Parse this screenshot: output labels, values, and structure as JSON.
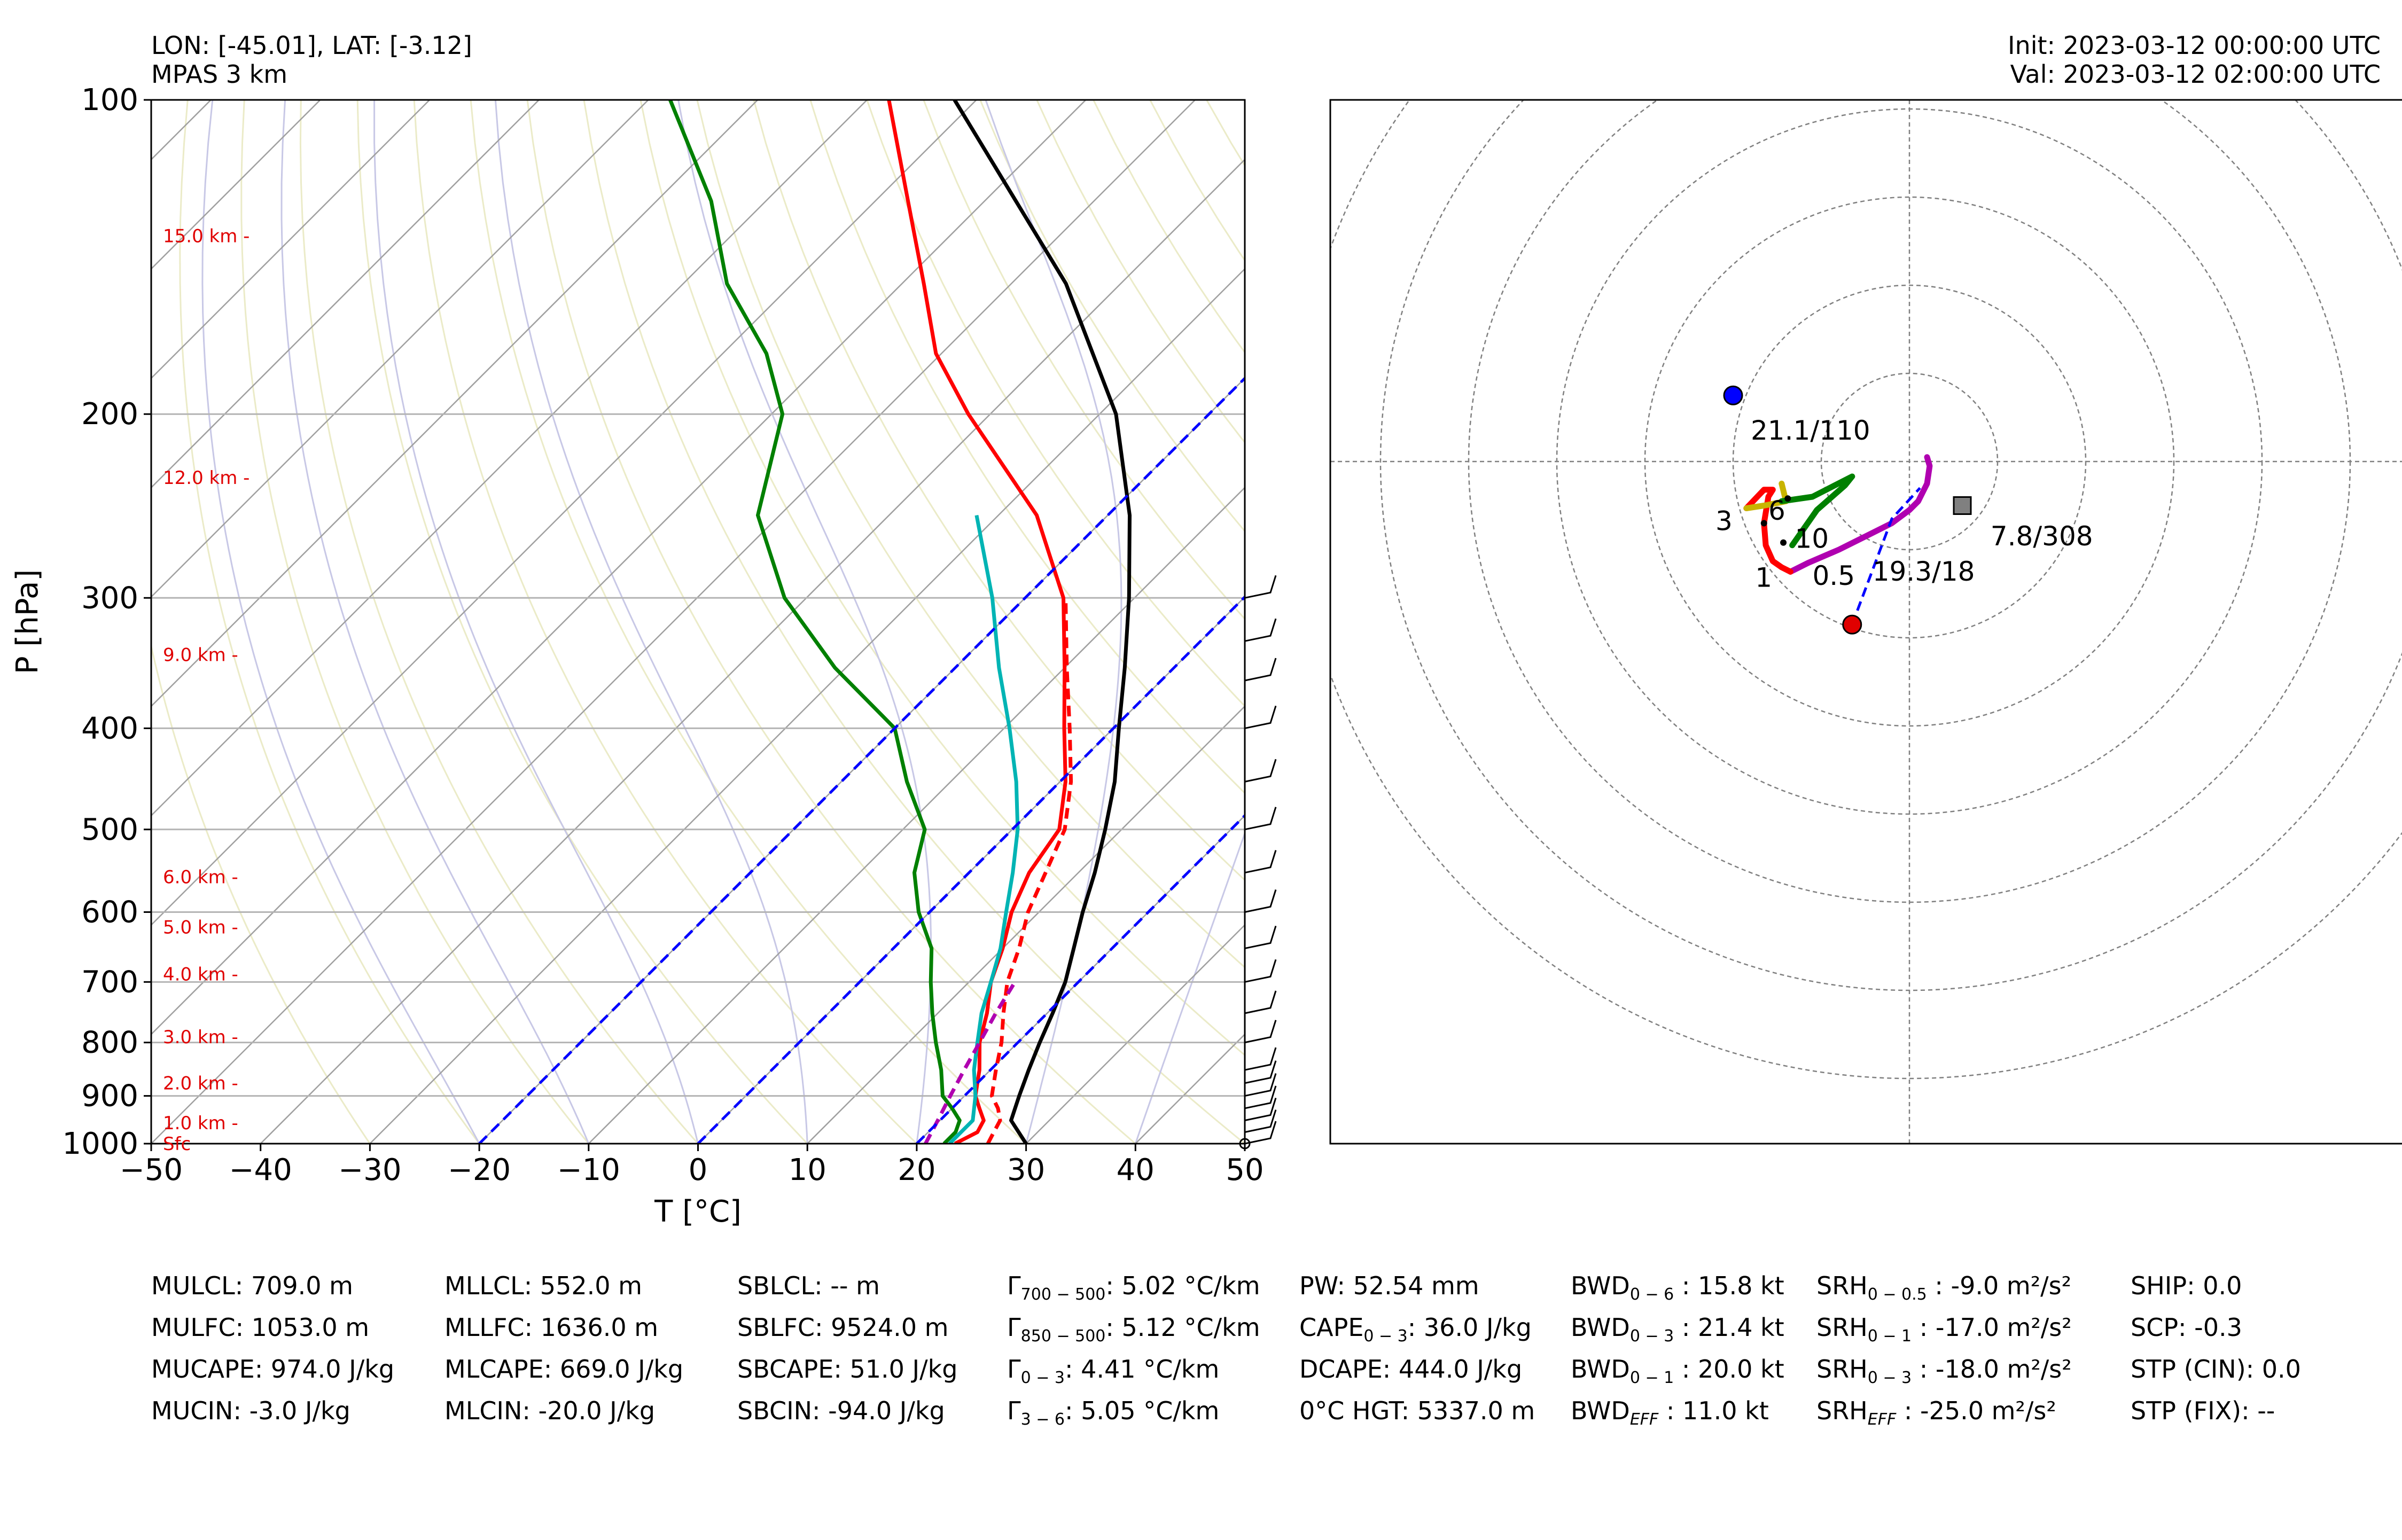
{
  "header": {
    "location": "LON: [-45.01], LAT: [-3.12]",
    "model": "MPAS 3 km",
    "init": "Init: 2023-03-12 00:00:00 UTC",
    "valid": "Val: 2023-03-12 02:00:00 UTC"
  },
  "chart_data": [
    {
      "type": "line",
      "subtype": "skew-T log-P",
      "xlabel": "T [°C]",
      "ylabel": "P [hPa]",
      "xlim": [
        -50,
        50
      ],
      "ylim": [
        1000,
        100
      ],
      "y_scale": "log",
      "x_ticks": [
        "−50",
        "−40",
        "−30",
        "−20",
        "−10",
        "0",
        "10",
        "20",
        "30",
        "40",
        "50"
      ],
      "y_ticks": [
        "100",
        "200",
        "300",
        "400",
        "500",
        "600",
        "700",
        "800",
        "900",
        "1000"
      ],
      "height_labels": [
        "15.0 km -",
        "12.0 km -",
        "9.0 km -",
        "6.0 km -",
        "5.0 km -",
        "4.0 km -",
        "3.0 km -",
        "2.0 km -",
        "1.0 km -",
        "Sfc"
      ],
      "height_label_pressures": [
        135,
        230,
        340,
        555,
        620,
        688,
        790,
        875,
        955,
        1000
      ],
      "series": [
        {
          "color": "#ff0000",
          "style": "solid",
          "p": [
            1000,
            975,
            950,
            925,
            900,
            850,
            800,
            750,
            700,
            650,
            600,
            550,
            500,
            450,
            400,
            350,
            300,
            250,
            200,
            175,
            150,
            125,
            100
          ],
          "t": [
            23.5,
            24.5,
            24.0,
            22.5,
            21.0,
            19.0,
            16.5,
            14.5,
            12.0,
            10.0,
            7.5,
            5.5,
            4.3,
            0.5,
            -4.5,
            -10.0,
            -16.5,
            -26.5,
            -42.0,
            -50.5,
            -58.0,
            -67.0,
            -78.0
          ]
        },
        {
          "color": "#ff0000",
          "style": "dashed",
          "p": [
            1000,
            975,
            950,
            925,
            900,
            850,
            800,
            750,
            700,
            650,
            600,
            550,
            500,
            450,
            400,
            350,
            300
          ],
          "t": [
            26.5,
            26.0,
            25.5,
            24.2,
            22.5,
            20.5,
            18.5,
            16.0,
            13.5,
            11.5,
            9.0,
            7.0,
            4.8,
            1.0,
            -4.0,
            -9.8,
            -16.3
          ]
        },
        {
          "color": "#008000",
          "style": "solid",
          "p": [
            1000,
            975,
            950,
            925,
            900,
            850,
            800,
            750,
            700,
            650,
            600,
            550,
            500,
            450,
            400,
            350,
            300,
            250,
            200,
            175,
            150,
            125,
            100
          ],
          "t": [
            22.5,
            22.5,
            21.8,
            20.0,
            18.0,
            15.5,
            12.5,
            9.5,
            6.5,
            3.5,
            -1.0,
            -5.0,
            -8.0,
            -14.0,
            -20.0,
            -31.0,
            -42.0,
            -52.0,
            -59.0,
            -66.0,
            -76.0,
            -85.0,
            -98.0
          ]
        },
        {
          "color": "#00b4b4",
          "style": "solid",
          "p": [
            1000,
            950,
            900,
            850,
            800,
            750,
            700,
            650,
            600,
            550,
            500,
            450,
            400,
            350,
            300,
            250
          ],
          "t": [
            23.0,
            23.0,
            21.0,
            18.5,
            16.3,
            14.0,
            12.0,
            9.8,
            7.0,
            4.0,
            0.5,
            -4.0,
            -9.5,
            -16.0,
            -23.0,
            -32.0
          ]
        },
        {
          "color": "#b000b0",
          "style": "dashed",
          "p": [
            1000,
            950,
            900,
            850,
            800,
            750,
            700
          ],
          "t": [
            20.8,
            19.8,
            18.7,
            17.6,
            16.5,
            15.3,
            14.2
          ]
        },
        {
          "color": "#000000",
          "style": "solid",
          "p": [
            1000,
            950,
            900,
            850,
            800,
            750,
            700,
            650,
            600,
            550,
            500,
            450,
            400,
            350,
            300,
            250,
            200,
            150,
            100
          ],
          "t": [
            30.0,
            26.5,
            25.0,
            23.5,
            22.0,
            20.5,
            18.8,
            16.5,
            14.0,
            11.5,
            8.5,
            5.0,
            0.5,
            -4.5,
            -10.5,
            -18.0,
            -28.5,
            -45.0,
            -72.0
          ]
        },
        {
          "color": "#0000ff",
          "style": "dashed",
          "note": "isotherm",
          "t_const": -20
        },
        {
          "color": "#0000ff",
          "style": "dashed",
          "note": "isotherm",
          "t_const": 0
        },
        {
          "color": "#0000ff",
          "style": "dashed",
          "note": "isotherm",
          "t_const": 20
        }
      ]
    },
    {
      "type": "scatter",
      "subtype": "hodograph",
      "grid": "concentric circles",
      "range_kt": [
        -50,
        50
      ],
      "ring_spacing_kt": 10,
      "hodo_line": [
        {
          "color": "#b000b0",
          "u": [
            2.0,
            2.3,
            2.0,
            1.0,
            0.0,
            -2.0,
            -5.0,
            -8.0,
            -11.5,
            -13.5
          ],
          "v": [
            0.5,
            -0.5,
            -2.5,
            -4.5,
            -5.5,
            -7.0,
            -8.5,
            -10.0,
            -11.5,
            -12.5
          ]
        },
        {
          "color": "#ff0000",
          "u": [
            -13.5,
            -14.5,
            -15.5,
            -16.3,
            -16.5,
            -16.0,
            -15.5,
            -16.5,
            -18.5
          ],
          "v": [
            -12.5,
            -12.0,
            -11.3,
            -9.5,
            -7.0,
            -4.0,
            -3.2,
            -3.2,
            -5.3
          ]
        },
        {
          "color": "#c8b400",
          "u": [
            -18.5,
            -16.5,
            -14.0,
            -14.5
          ],
          "v": [
            -5.3,
            -5.0,
            -4.5,
            -2.5
          ]
        },
        {
          "color": "#008000",
          "u": [
            -14.5,
            -11.0,
            -6.5,
            -7.3,
            -10.5,
            -13.3
          ],
          "v": [
            -4.5,
            -4.0,
            -1.7,
            -2.7,
            -5.5,
            -9.5
          ]
        }
      ],
      "points": [
        {
          "name": "blue",
          "u": -20.0,
          "v": 7.5,
          "label": "21.1/110"
        },
        {
          "name": "red",
          "u": -6.5,
          "v": -18.5,
          "label": "19.3/18"
        },
        {
          "name": "square",
          "u": 6.0,
          "v": -5.0,
          "label": "7.8/308"
        }
      ],
      "height_markers": [
        "3",
        "6",
        "10",
        "1",
        "0.5"
      ],
      "line_labels": [
        "21.1/110",
        "7.8/308",
        "19.3/18"
      ]
    }
  ],
  "indices": {
    "col1": [
      "MULCL: 709.0 m",
      "MULFC: 1053.0 m",
      "MUCAPE: 974.0 J/kg",
      "MUCIN: -3.0 J/kg"
    ],
    "col2": [
      "MLLCL: 552.0 m",
      "MLLFC: 1636.0 m",
      "MLCAPE: 669.0 J/kg",
      "MLCIN: -20.0 J/kg"
    ],
    "col3": [
      "SBLCL: -- m",
      "SBLFC: 9524.0 m",
      "SBCAPE: 51.0 J/kg",
      "SBCIN: -94.0 J/kg"
    ],
    "col4": [
      {
        "base": "Γ",
        "sub": "700 − 500",
        "rest": ": 5.02 °C/km"
      },
      {
        "base": "Γ",
        "sub": "850 − 500",
        "rest": ": 5.12 °C/km"
      },
      {
        "base": "Γ",
        "sub": "0 − 3",
        "rest": ": 4.41 °C/km"
      },
      {
        "base": "Γ",
        "sub": "3 − 6",
        "rest": ": 5.05 °C/km"
      }
    ],
    "col5": [
      {
        "base": "PW: 52.54 mm",
        "sub": "",
        "rest": ""
      },
      {
        "base": "CAPE",
        "sub": "0 − 3",
        "rest": ": 36.0 J/kg"
      },
      {
        "base": "DCAPE: 444.0 J/kg",
        "sub": "",
        "rest": ""
      },
      {
        "base": "0°C HGT: 5337.0 m",
        "sub": "",
        "rest": ""
      }
    ],
    "col6": [
      {
        "base": "BWD",
        "sub": "0 − 6",
        "rest": " : 15.8 kt"
      },
      {
        "base": "BWD",
        "sub": "0 − 3",
        "rest": " : 21.4 kt"
      },
      {
        "base": "BWD",
        "sub": "0 − 1",
        "rest": " : 20.0 kt"
      },
      {
        "base": "BWD",
        "sub": "EFF",
        "rest": " : 11.0 kt"
      }
    ],
    "col7": [
      {
        "base": "SRH",
        "sub": "0 − 0.5",
        "rest": " : -9.0 m²/s²"
      },
      {
        "base": "SRH",
        "sub": "0 − 1",
        "rest": " : -17.0 m²/s²"
      },
      {
        "base": "SRH",
        "sub": "0 − 3",
        "rest": " : -18.0 m²/s²"
      },
      {
        "base": "SRH",
        "sub": "EFF",
        "rest": " : -25.0 m²/s²"
      }
    ],
    "col8": [
      "SHIP: 0.0",
      "SCP: -0.3",
      "STP (CIN): 0.0",
      "STP (FIX): --"
    ]
  }
}
